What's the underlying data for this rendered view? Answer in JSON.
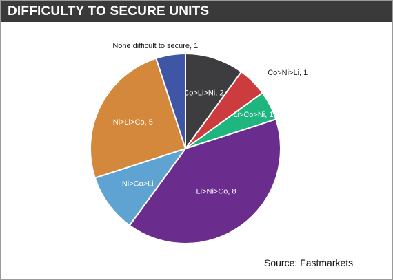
{
  "title": "DIFFICULTY TO SECURE UNITS",
  "source": "Source: Fastmarkets",
  "chart_data": {
    "type": "pie",
    "slices": [
      {
        "label": "Co>Li>Ni, 2",
        "value": 2,
        "color": "#3d3d3f",
        "text_color": "#ffffff"
      },
      {
        "label": "Co>Ni>Li, 1",
        "value": 1,
        "color": "#cc3b3d",
        "text_color": "#1a1a1a"
      },
      {
        "label": "Li>Co>Ni, 1",
        "value": 1,
        "color": "#1fb57e",
        "text_color": "#ffffff"
      },
      {
        "label": "Li>Ni>Co, 8",
        "value": 8,
        "color": "#6a2d8e",
        "text_color": "#ffffff"
      },
      {
        "label": "Ni>Co>Li",
        "value": 2,
        "color": "#5fa3d3",
        "text_color": "#ffffff"
      },
      {
        "label": "Ni>Li>Co, 5",
        "value": 5,
        "color": "#d4883b",
        "text_color": "#ffffff"
      },
      {
        "label": "None difficult to secure, 1",
        "value": 1,
        "color": "#3f55a6",
        "text_color": "#1a1a1a"
      }
    ]
  }
}
